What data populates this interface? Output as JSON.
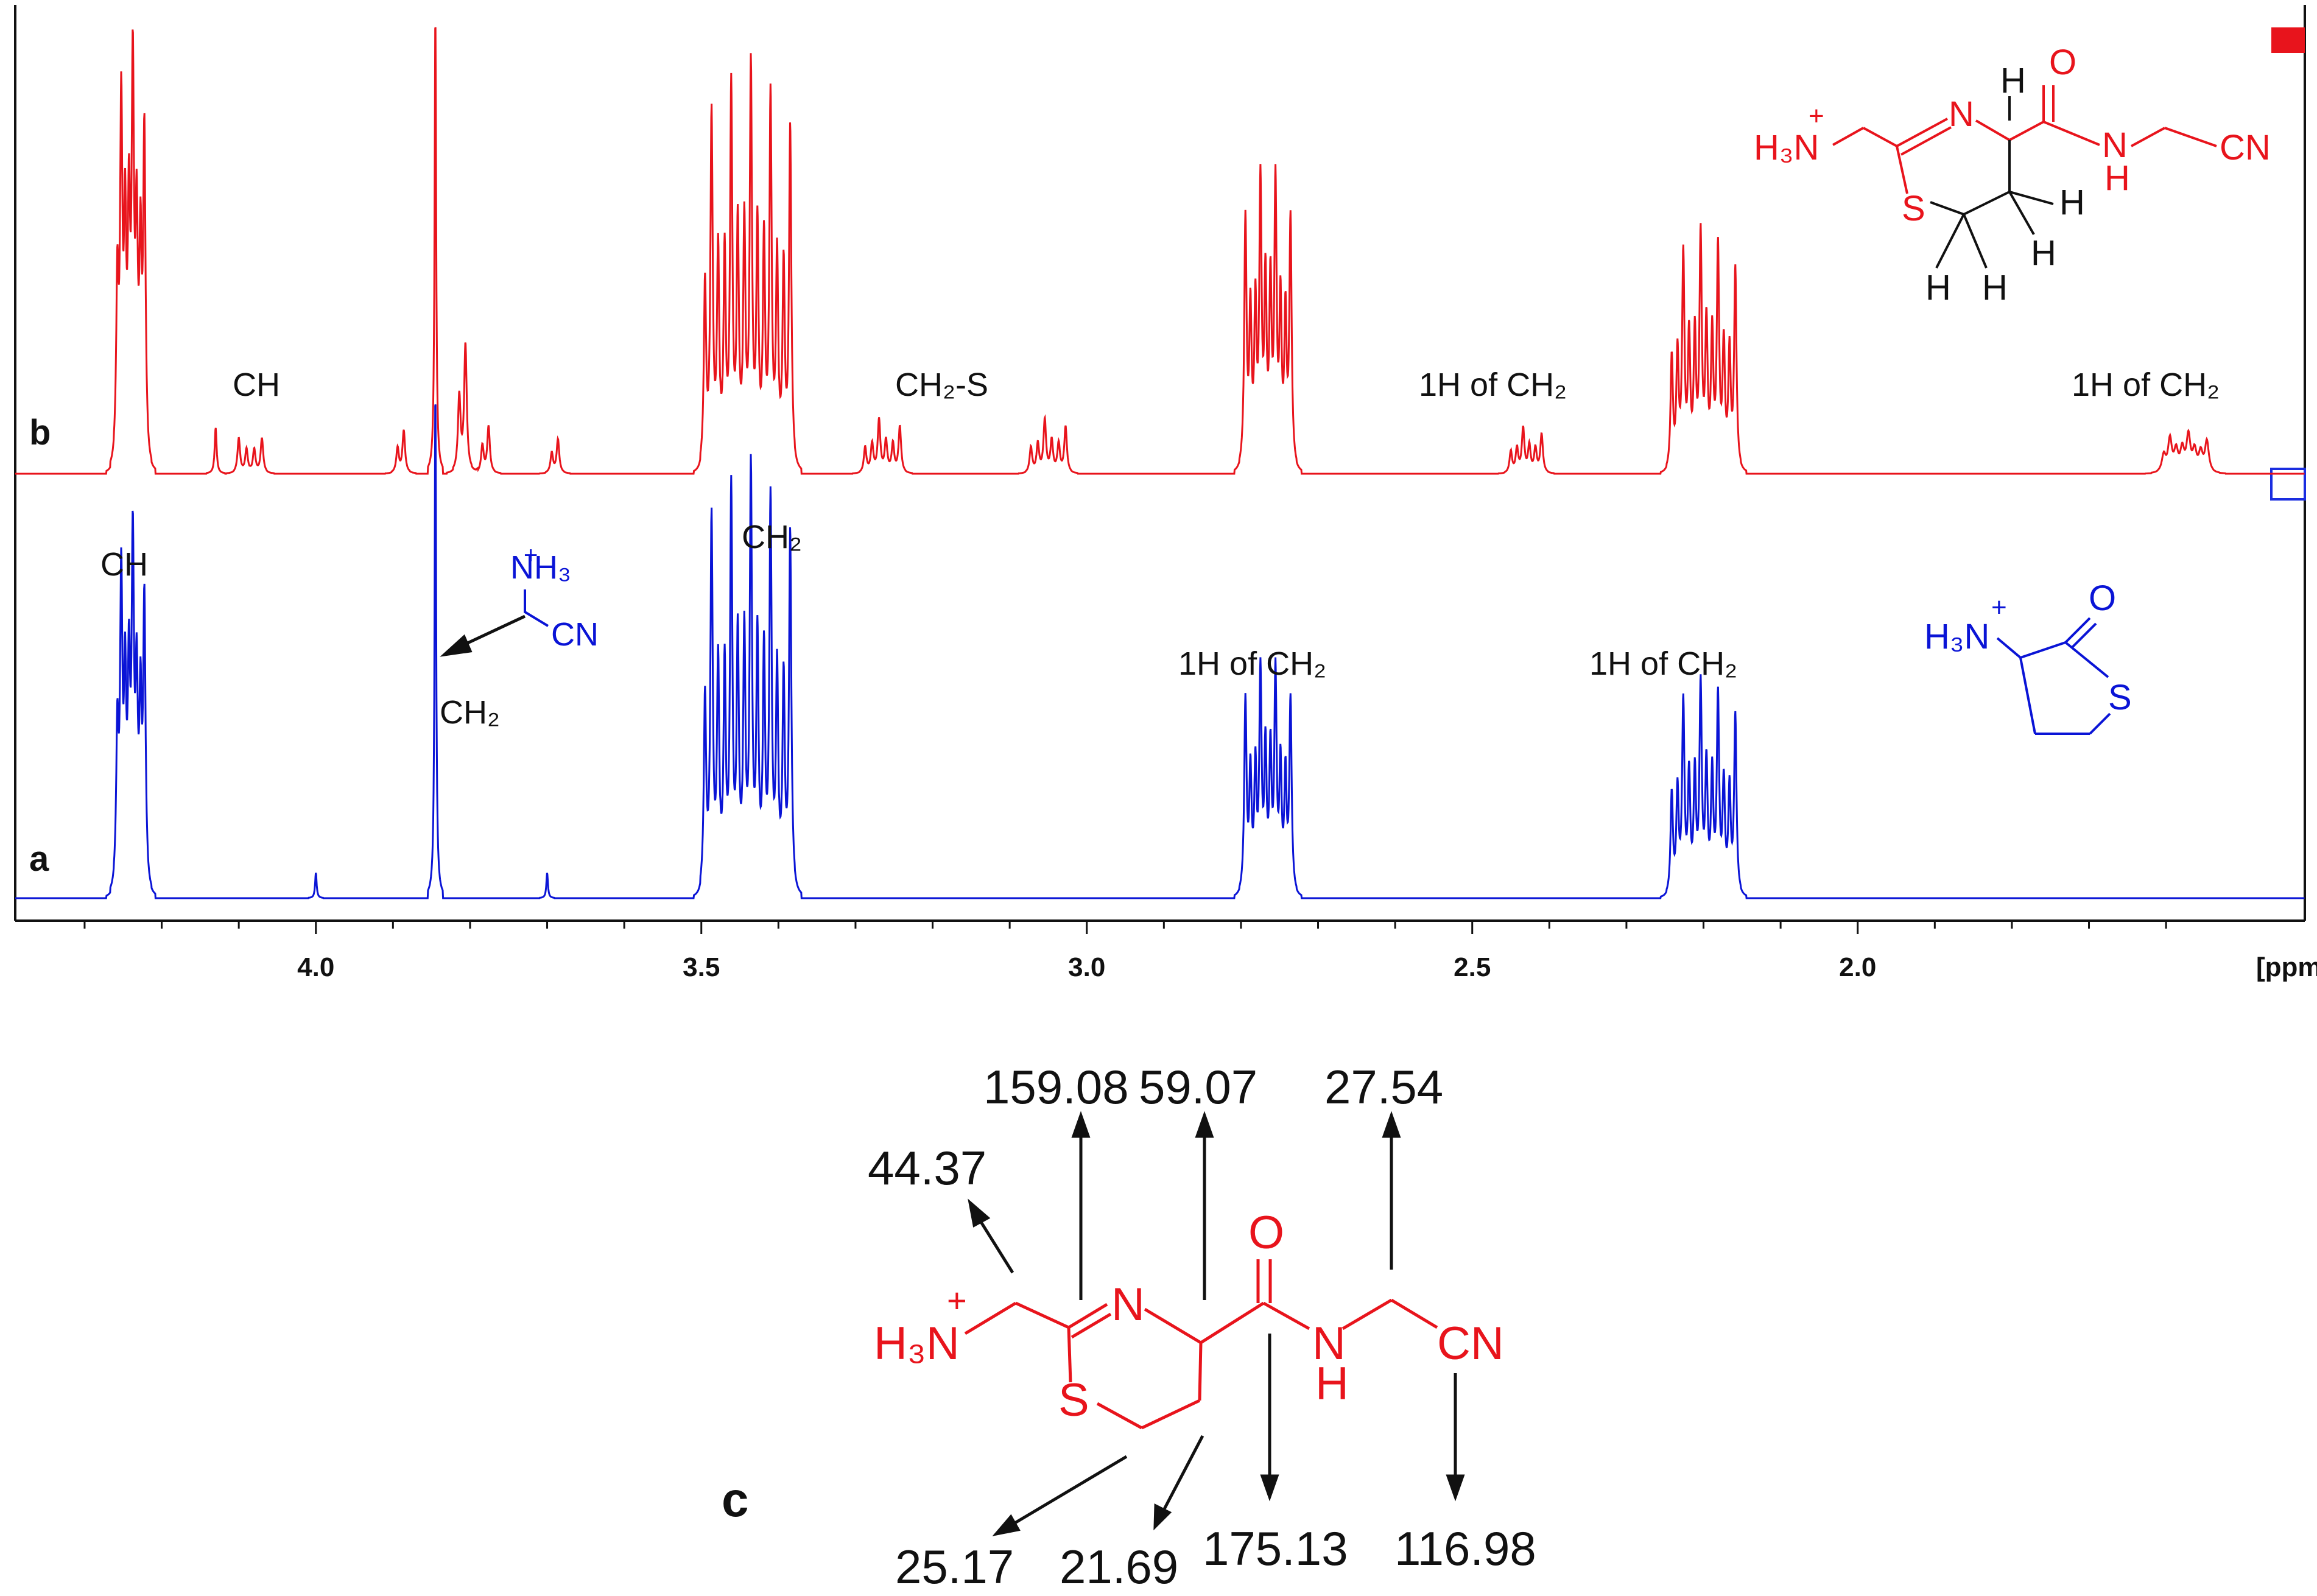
{
  "chart_data": {
    "type": "line",
    "axis_label": "[ppm]",
    "xlim": [
      4.39,
      1.42
    ],
    "reversed_x": true,
    "tick_labels": [
      "4.0",
      "3.5",
      "3.0",
      "2.5",
      "2.0"
    ],
    "tick_values": [
      4.0,
      3.5,
      3.0,
      2.5,
      2.0
    ],
    "grid": false,
    "series": [
      {
        "panel_label": "b",
        "color": "#e8141c",
        "peaks": [
          {
            "ppm": 4.24,
            "height": 0.85,
            "lines": 8,
            "spacing": 0.005,
            "width": 0.0018
          },
          {
            "ppm": 4.085,
            "height": 0.09,
            "lines": 4,
            "spacing": 0.01,
            "width": 0.002
          },
          {
            "ppm": 4.13,
            "height": 0.1,
            "lines": 1,
            "spacing": 0,
            "width": 0.0015
          },
          {
            "ppm": 3.89,
            "height": 0.1,
            "lines": 2,
            "spacing": 0.008,
            "width": 0.002
          },
          {
            "ppm": 3.845,
            "height": 1.0,
            "lines": 1,
            "spacing": 0,
            "width": 0.0012
          },
          {
            "ppm": 3.81,
            "height": 0.3,
            "lines": 2,
            "spacing": 0.008,
            "width": 0.002
          },
          {
            "ppm": 3.78,
            "height": 0.11,
            "lines": 2,
            "spacing": 0.008,
            "width": 0.002
          },
          {
            "ppm": 3.69,
            "height": 0.08,
            "lines": 2,
            "spacing": 0.008,
            "width": 0.002
          },
          {
            "ppm": 3.44,
            "height": 0.88,
            "lines": 14,
            "spacing": 0.0085,
            "width": 0.0018
          },
          {
            "ppm": 3.265,
            "height": 0.12,
            "lines": 6,
            "spacing": 0.009,
            "width": 0.002
          },
          {
            "ppm": 3.05,
            "height": 0.12,
            "lines": 6,
            "spacing": 0.009,
            "width": 0.002
          },
          {
            "ppm": 2.765,
            "height": 0.64,
            "lines": 10,
            "spacing": 0.0065,
            "width": 0.0018
          },
          {
            "ppm": 2.43,
            "height": 0.1,
            "lines": 6,
            "spacing": 0.008,
            "width": 0.002
          },
          {
            "ppm": 2.2,
            "height": 0.52,
            "lines": 12,
            "spacing": 0.0075,
            "width": 0.0018
          },
          {
            "ppm": 1.575,
            "height": 0.08,
            "lines": 8,
            "spacing": 0.008,
            "width": 0.003
          }
        ]
      },
      {
        "panel_label": "a",
        "color": "#0a14d6",
        "peaks": [
          {
            "ppm": 4.24,
            "height": 0.67,
            "lines": 8,
            "spacing": 0.005,
            "width": 0.0018
          },
          {
            "ppm": 4.0,
            "height": 0.05,
            "lines": 1,
            "spacing": 0,
            "width": 0.0012
          },
          {
            "ppm": 3.845,
            "height": 1.0,
            "lines": 1,
            "spacing": 0,
            "width": 0.0012
          },
          {
            "ppm": 3.7,
            "height": 0.05,
            "lines": 1,
            "spacing": 0,
            "width": 0.0012
          },
          {
            "ppm": 3.44,
            "height": 0.84,
            "lines": 14,
            "spacing": 0.0085,
            "width": 0.0018
          },
          {
            "ppm": 2.765,
            "height": 0.45,
            "lines": 10,
            "spacing": 0.0065,
            "width": 0.0018
          },
          {
            "ppm": 2.2,
            "height": 0.42,
            "lines": 12,
            "spacing": 0.0075,
            "width": 0.0018
          }
        ]
      }
    ],
    "annotations": {
      "b": [
        "CH",
        "CH₂-S",
        "1H of CH₂",
        "1H of CH₂"
      ],
      "a": [
        "CH",
        "CH₂",
        "CH₂",
        "1H of CH₂",
        "1H of CH₂"
      ]
    }
  },
  "structures": {
    "b_top": {
      "h3n": "H₃N",
      "plus": "+",
      "n": "N",
      "s": "S",
      "o": "O",
      "nh_n": "N",
      "nh_h": "H",
      "cn": "CN",
      "h": "H"
    },
    "a_bottom": {
      "h3n": "H₃N",
      "plus": "+",
      "o": "O",
      "s": "S"
    },
    "a_small": {
      "nh3": "NH₃",
      "plus": "+",
      "cn": "CN"
    },
    "c": {
      "h3n": "H₃N",
      "plus": "+",
      "n": "N",
      "s": "S",
      "o": "O",
      "nh_n": "N",
      "nh_h": "H",
      "cn": "CN"
    }
  },
  "panel_c": {
    "label": "c",
    "shifts_top": [
      "159.08",
      "59.07",
      "27.54",
      "44.37"
    ],
    "shifts_bottom": [
      "25.17",
      "21.69",
      "175.13",
      "116.98"
    ]
  },
  "colors": {
    "red": "#e8141c",
    "blue": "#0a14d6",
    "black": "#111111"
  }
}
